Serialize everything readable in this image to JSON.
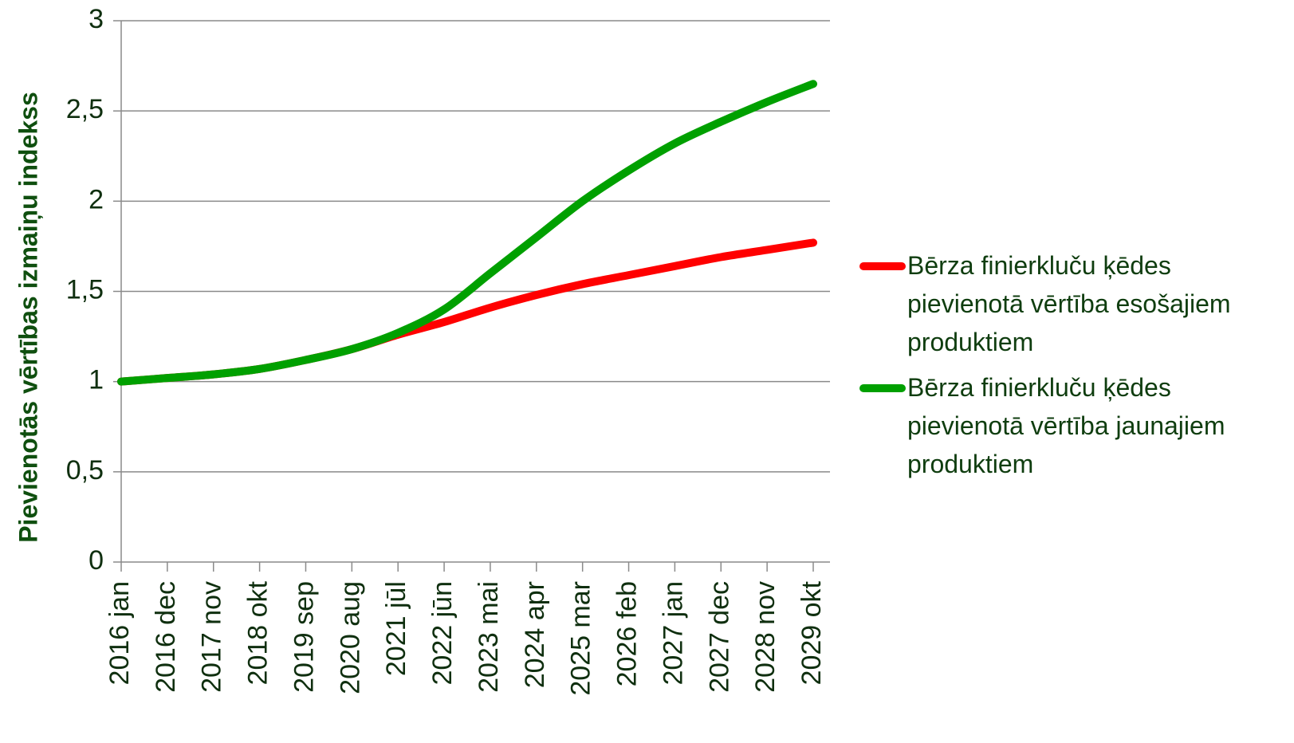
{
  "chart_data": {
    "type": "line",
    "y_label": "Pievienotās vērtības izmaiņu indekss",
    "categories": [
      "2016 jan",
      "2016 dec",
      "2017 nov",
      "2018 okt",
      "2019 sep",
      "2020 aug",
      "2021 jūl",
      "2022 jūn",
      "2023 mai",
      "2024 apr",
      "2025 mar",
      "2026 feb",
      "2027 jan",
      "2027 dec",
      "2028 nov",
      "2029 okt"
    ],
    "series": [
      {
        "name": "Bērza finierkluču ķēdes pievienotā vērtība esošajiem produktiem",
        "color": "#ff0000",
        "values": [
          1.0,
          1.02,
          1.04,
          1.07,
          1.12,
          1.18,
          1.26,
          1.33,
          1.41,
          1.48,
          1.54,
          1.59,
          1.64,
          1.69,
          1.73,
          1.77
        ]
      },
      {
        "name": "Bērza finierkluču ķēdes pievienotā vērtība jaunajiem produktiem",
        "color": "#00a000",
        "values": [
          1.0,
          1.02,
          1.04,
          1.07,
          1.12,
          1.18,
          1.27,
          1.4,
          1.6,
          1.8,
          2.0,
          2.17,
          2.32,
          2.44,
          2.55,
          2.65
        ]
      }
    ],
    "ylim": [
      0,
      3
    ],
    "yticks": [
      0,
      {
        "value": 0.5,
        "label": "0,5"
      },
      1,
      {
        "value": 1.5,
        "label": "1,5"
      },
      2,
      {
        "value": 2.5,
        "label": "2,5"
      },
      3
    ],
    "grid": true
  }
}
